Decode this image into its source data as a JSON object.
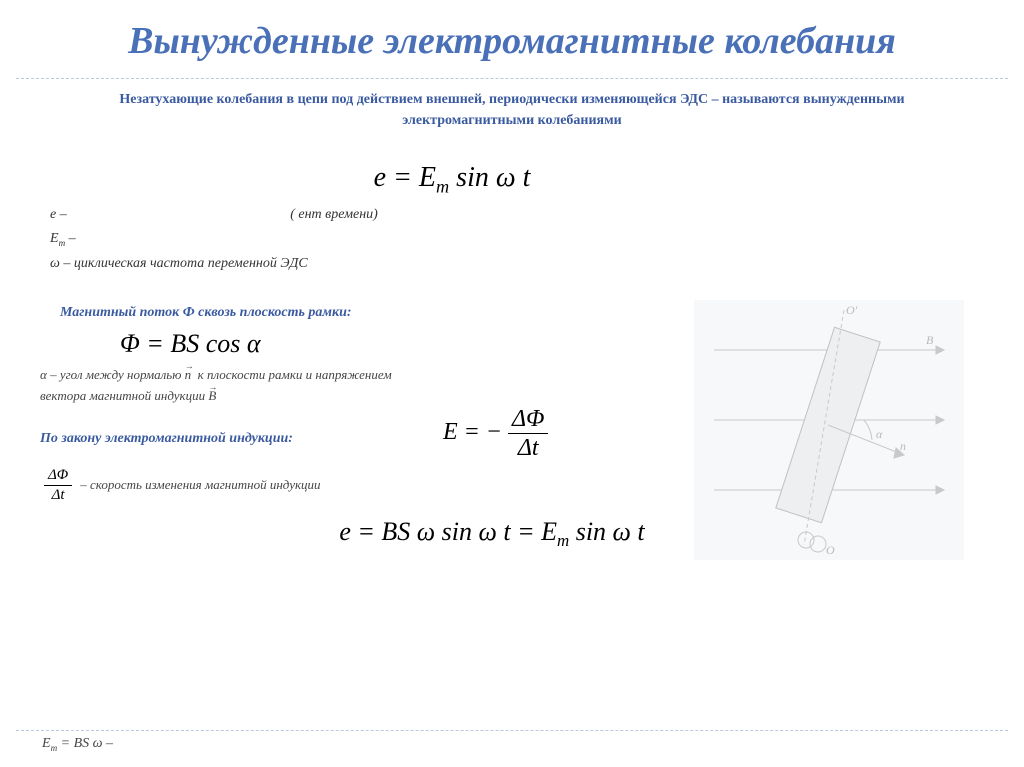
{
  "title": "Вынужденные электромагнитные колебания",
  "subtitle": "Незатухающие колебания в цепи под действием внешней, периодически изменяющейся ЭДС – называются вынужденными электромагнитными колебаниями",
  "formula1_html": "e = E<span class='sub'>m</span> sin ω t",
  "def_e": "e –",
  "def_em": "E<span class='sub'>m</span> –",
  "def_omega": "ω – циклическая частота переменной ЭДС",
  "paren_text": "(                                     ент времени)",
  "heading_flux": "Магнитный поток Ф сквозь плоскость рамки:",
  "formula_phi_html": "Φ = BS cos α",
  "desc_alpha_html": "α – угол между нормалью <span class='vec'>n</span>&nbsp; к плоскости рамки и напряжением<br>вектора магнитной индукции <span class='vec'>B</span>",
  "heading_law": "По закону электромагнитной индукции:",
  "formula_e2_lhs": "E = −",
  "formula_e2_num": "ΔΦ",
  "formula_e2_den": "Δt",
  "dphi_num": "ΔΦ",
  "dphi_den": "Δt",
  "dphi_desc": "– скорость изменения магнитной индукции",
  "formula_final_html": "e = BS ω sin ω t = E<span class='sub'>m</span> sin ω t",
  "footer_html": "E<span class='sub'>m</span> = BS ω  –",
  "colors": {
    "title": "#4a70b8",
    "accent": "#3a5aa0",
    "dash": "#bcc7dd",
    "diagram_bg": "#eef0f2"
  },
  "diagram": {
    "type": "physics-schematic",
    "description": "Rotating frame in magnetic field B with axis O-O', normal n, angle α",
    "labels": [
      "O",
      "O'",
      "B",
      "n",
      "α"
    ],
    "field_lines": 3
  }
}
